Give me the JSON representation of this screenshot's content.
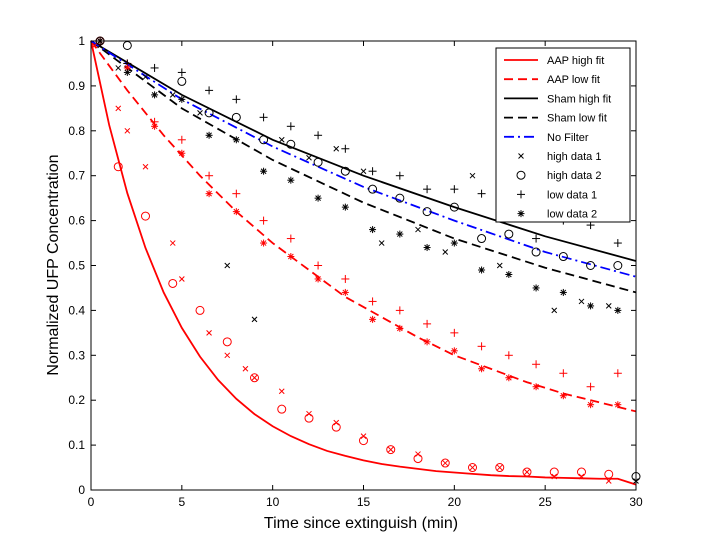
{
  "chart_data": {
    "type": "line",
    "title": "",
    "xlabel": "Time since extinguish (min)",
    "ylabel": "Normalized UFP Concentration",
    "xlim": [
      0,
      30
    ],
    "ylim": [
      0,
      1
    ],
    "xticks": [
      0,
      5,
      10,
      15,
      20,
      25,
      30
    ],
    "yticks": [
      0,
      0.1,
      0.2,
      0.3,
      0.4,
      0.5,
      0.6,
      0.7,
      0.8,
      0.9,
      1
    ],
    "yticklabels": [
      "0",
      "0.1",
      "0.2",
      "0.3",
      "0.4",
      "0.5",
      "0.6",
      "0.7",
      "0.8",
      "0.9",
      "1"
    ],
    "grid": false,
    "legend_position": "top-right",
    "series": [
      {
        "name": "AAP high fit",
        "kind": "line",
        "color": "#ff0000",
        "dash": "solid",
        "x": [
          0,
          1,
          2,
          3,
          4,
          5,
          6,
          7,
          8,
          9,
          10,
          11,
          12,
          13,
          14,
          15,
          16,
          17,
          18,
          19,
          20,
          21,
          22,
          23,
          24,
          25,
          26,
          27,
          28,
          29,
          30
        ],
        "y": [
          1.0,
          0.813,
          0.661,
          0.539,
          0.44,
          0.361,
          0.297,
          0.245,
          0.203,
          0.169,
          0.142,
          0.12,
          0.102,
          0.087,
          0.076,
          0.066,
          0.058,
          0.052,
          0.047,
          0.042,
          0.039,
          0.036,
          0.033,
          0.031,
          0.03,
          0.028,
          0.027,
          0.026,
          0.025,
          0.025,
          0.012
        ]
      },
      {
        "name": "AAP low fit",
        "kind": "line",
        "color": "#ff0000",
        "dash": "dashed",
        "x": [
          0,
          2,
          4,
          6,
          8,
          10,
          12,
          14,
          16,
          18,
          20,
          22,
          24,
          26,
          28,
          30
        ],
        "y": [
          1.0,
          0.89,
          0.79,
          0.7,
          0.62,
          0.55,
          0.49,
          0.43,
          0.385,
          0.34,
          0.3,
          0.27,
          0.24,
          0.215,
          0.195,
          0.175
        ]
      },
      {
        "name": "Sham high fit",
        "kind": "line",
        "color": "#000000",
        "dash": "solid",
        "x": [
          0,
          5,
          10,
          15,
          20,
          25,
          30
        ],
        "y": [
          1.0,
          0.88,
          0.78,
          0.7,
          0.63,
          0.565,
          0.51
        ]
      },
      {
        "name": "Sham low fit",
        "kind": "line",
        "color": "#000000",
        "dash": "dashed",
        "x": [
          0,
          5,
          10,
          15,
          20,
          25,
          30
        ],
        "y": [
          1.0,
          0.85,
          0.735,
          0.64,
          0.56,
          0.495,
          0.44
        ]
      },
      {
        "name": "No Filter",
        "kind": "line",
        "color": "#0000ff",
        "dash": "dashdot",
        "x": [
          0,
          5,
          10,
          15,
          20,
          25,
          30
        ],
        "y": [
          1.0,
          0.87,
          0.765,
          0.675,
          0.6,
          0.53,
          0.475
        ]
      },
      {
        "name": "high data 1",
        "kind": "scatter",
        "marker": "x",
        "colors": [
          "#ff0000",
          "#000000"
        ],
        "x": [
          0.2,
          1.5,
          2.0,
          3.0,
          4.5,
          5.0,
          6.5,
          7.5,
          8.5,
          9.0,
          10.5,
          12.0,
          13.5,
          15.0,
          16.5,
          18.0,
          19.5,
          21.0,
          22.5,
          24.0,
          25.5,
          27.0,
          28.5,
          30.0,
          0.5,
          1.5,
          3.0,
          4.5,
          6.0,
          7.5,
          9.0,
          10.5,
          12.0,
          13.5,
          15.0,
          16.0,
          18.0,
          19.5,
          21.0,
          22.5,
          24.0,
          25.5,
          27.0,
          28.5,
          29.5
        ],
        "y": [
          0.99,
          0.85,
          0.8,
          0.72,
          0.55,
          0.47,
          0.35,
          0.3,
          0.27,
          0.25,
          0.22,
          0.17,
          0.15,
          0.12,
          0.09,
          0.08,
          0.06,
          0.05,
          0.05,
          0.04,
          0.03,
          0.03,
          0.02,
          0.02,
          0.99,
          0.94,
          0.92,
          0.88,
          0.84,
          0.5,
          0.38,
          0.78,
          0.74,
          0.76,
          0.71,
          0.55,
          0.58,
          0.53,
          0.7,
          0.5,
          0.65,
          0.4,
          0.42,
          0.41,
          0.76
        ]
      },
      {
        "name": "high data 2",
        "kind": "scatter",
        "marker": "o",
        "colors": [
          "#ff0000",
          "#000000"
        ],
        "x": [
          0.5,
          1.5,
          3.0,
          4.5,
          6.0,
          7.5,
          9.0,
          10.5,
          12.0,
          13.5,
          15.0,
          16.5,
          18.0,
          19.5,
          21.0,
          22.5,
          24.0,
          25.5,
          27.0,
          28.5,
          30.0,
          0.5,
          2.0,
          5.0,
          6.5,
          8.0,
          9.5,
          11.0,
          12.5,
          14.0,
          15.5,
          17.0,
          18.5,
          20.0,
          21.5,
          23.0,
          24.5,
          26.0,
          27.5,
          29.0
        ],
        "y": [
          1.0,
          0.72,
          0.61,
          0.46,
          0.4,
          0.33,
          0.25,
          0.18,
          0.16,
          0.14,
          0.11,
          0.09,
          0.07,
          0.06,
          0.05,
          0.05,
          0.04,
          0.04,
          0.04,
          0.035,
          0.03,
          1.0,
          0.99,
          0.91,
          0.84,
          0.83,
          0.78,
          0.77,
          0.73,
          0.71,
          0.67,
          0.65,
          0.62,
          0.63,
          0.56,
          0.57,
          0.53,
          0.52,
          0.5,
          0.5
        ]
      },
      {
        "name": "low data 1",
        "kind": "scatter",
        "marker": "+",
        "colors": [
          "#ff0000",
          "#000000"
        ],
        "x": [
          0.5,
          2.0,
          3.5,
          5.0,
          6.5,
          8.0,
          9.5,
          11.0,
          12.5,
          14.0,
          15.5,
          17.0,
          18.5,
          20.0,
          21.5,
          23.0,
          24.5,
          26.0,
          27.5,
          29.0,
          0.5,
          2.0,
          3.5,
          5.0,
          6.5,
          8.0,
          9.5,
          11.0,
          12.5,
          14.0,
          15.5,
          17.0,
          18.5,
          20.0,
          21.5,
          23.0,
          24.5,
          26.0,
          27.5,
          29.0
        ],
        "y": [
          1.0,
          0.95,
          0.82,
          0.78,
          0.7,
          0.66,
          0.6,
          0.56,
          0.5,
          0.47,
          0.42,
          0.4,
          0.37,
          0.35,
          0.32,
          0.3,
          0.28,
          0.26,
          0.23,
          0.26,
          1.0,
          0.95,
          0.94,
          0.93,
          0.89,
          0.87,
          0.83,
          0.81,
          0.79,
          0.76,
          0.71,
          0.7,
          0.67,
          0.67,
          0.66,
          0.62,
          0.56,
          0.6,
          0.59,
          0.55
        ]
      },
      {
        "name": "low data 2",
        "kind": "scatter",
        "marker": "*",
        "colors": [
          "#ff0000",
          "#000000"
        ],
        "x": [
          0.5,
          2.0,
          3.5,
          5.0,
          6.5,
          8.0,
          9.5,
          11.0,
          12.5,
          14.0,
          15.5,
          17.0,
          18.5,
          20.0,
          21.5,
          23.0,
          24.5,
          26.0,
          27.5,
          29.0,
          0.5,
          2.0,
          3.5,
          5.0,
          6.5,
          8.0,
          9.5,
          11.0,
          12.5,
          14.0,
          15.5,
          17.0,
          18.5,
          20.0,
          21.5,
          23.0,
          24.5,
          26.0,
          27.5,
          29.0
        ],
        "y": [
          1.0,
          0.94,
          0.81,
          0.75,
          0.66,
          0.62,
          0.55,
          0.52,
          0.47,
          0.44,
          0.38,
          0.36,
          0.33,
          0.31,
          0.27,
          0.25,
          0.23,
          0.21,
          0.19,
          0.19,
          1.0,
          0.93,
          0.88,
          0.87,
          0.79,
          0.78,
          0.71,
          0.69,
          0.65,
          0.63,
          0.58,
          0.57,
          0.54,
          0.55,
          0.49,
          0.48,
          0.45,
          0.44,
          0.41,
          0.4
        ]
      }
    ]
  }
}
